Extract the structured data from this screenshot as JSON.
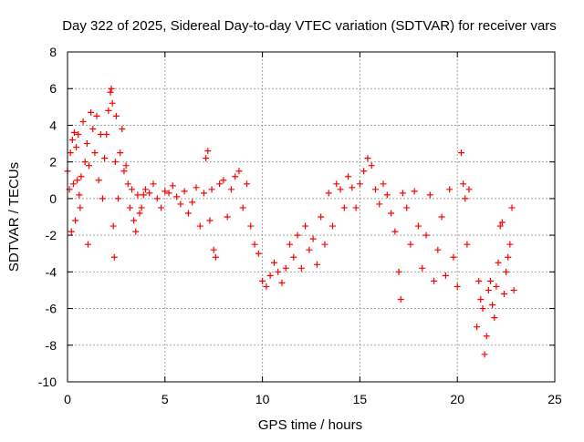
{
  "chart_data": {
    "type": "scatter",
    "title": "Day 322 of 2025, Sidereal Day-to-day VTEC variation (SDTVAR) for receiver vars",
    "xlabel": "GPS time / hours",
    "ylabel": "SDTVAR / TECUs",
    "xlim": [
      0,
      25
    ],
    "ylim": [
      -10,
      8
    ],
    "xticks": [
      0,
      5,
      10,
      15,
      20,
      25
    ],
    "yticks": [
      -10,
      -8,
      -6,
      -4,
      -2,
      0,
      2,
      4,
      6,
      8
    ],
    "grid": true,
    "marker": "+",
    "series_color": "#ff0000",
    "series": [
      {
        "name": "vars",
        "x": [
          0.0,
          0.1,
          0.15,
          0.2,
          0.25,
          0.3,
          0.35,
          0.4,
          0.45,
          0.5,
          0.55,
          0.6,
          0.65,
          0.7,
          0.8,
          0.9,
          1.0,
          1.05,
          1.1,
          1.2,
          1.3,
          1.4,
          1.5,
          1.6,
          1.7,
          1.8,
          1.9,
          2.0,
          2.1,
          2.2,
          2.25,
          2.3,
          2.35,
          2.4,
          2.45,
          2.5,
          2.6,
          2.7,
          2.8,
          2.9,
          3.0,
          3.1,
          3.2,
          3.3,
          3.4,
          3.5,
          3.6,
          3.7,
          3.8,
          3.9,
          4.0,
          4.2,
          4.4,
          4.6,
          4.8,
          5.0,
          5.2,
          5.4,
          5.6,
          5.8,
          6.0,
          6.2,
          6.4,
          6.6,
          6.8,
          7.0,
          7.1,
          7.2,
          7.3,
          7.4,
          7.5,
          7.6,
          7.8,
          8.0,
          8.2,
          8.4,
          8.6,
          8.8,
          9.0,
          9.2,
          9.4,
          9.6,
          9.8,
          10.0,
          10.2,
          10.4,
          10.6,
          10.8,
          11.0,
          11.2,
          11.4,
          11.6,
          11.8,
          12.0,
          12.2,
          12.4,
          12.6,
          12.8,
          13.0,
          13.2,
          13.4,
          13.6,
          13.8,
          14.0,
          14.2,
          14.4,
          14.6,
          14.8,
          15.0,
          15.2,
          15.4,
          15.6,
          15.8,
          16.0,
          16.2,
          16.4,
          16.6,
          16.8,
          17.0,
          17.1,
          17.2,
          17.4,
          17.6,
          17.8,
          18.0,
          18.2,
          18.4,
          18.6,
          18.8,
          19.0,
          19.2,
          19.4,
          19.6,
          19.8,
          20.0,
          20.2,
          20.3,
          20.4,
          20.5,
          20.6,
          21.0,
          21.1,
          21.2,
          21.3,
          21.4,
          21.5,
          21.6,
          21.7,
          21.8,
          21.9,
          22.0,
          22.1,
          22.2,
          22.3,
          22.4,
          22.5,
          22.6,
          22.7,
          22.8,
          22.9
        ],
        "y": [
          1.5,
          0.5,
          2.5,
          -1.8,
          3.2,
          0.8,
          3.6,
          -1.2,
          2.8,
          1.0,
          3.5,
          0.2,
          -0.5,
          1.2,
          4.2,
          2.0,
          3.0,
          -2.5,
          1.8,
          4.7,
          3.8,
          2.5,
          4.5,
          1.0,
          3.5,
          0.0,
          2.2,
          3.5,
          4.8,
          5.8,
          6.0,
          5.2,
          -1.5,
          -3.2,
          2.0,
          4.5,
          0.0,
          2.5,
          3.8,
          1.5,
          1.8,
          0.8,
          -0.5,
          0.5,
          -1.2,
          -1.8,
          0.2,
          -0.8,
          -0.5,
          0.2,
          0.5,
          0.3,
          0.8,
          0.0,
          -0.5,
          0.4,
          0.3,
          0.7,
          0.1,
          -0.3,
          0.4,
          -0.8,
          -0.2,
          0.6,
          -1.5,
          0.3,
          2.2,
          2.6,
          -1.2,
          0.5,
          -2.8,
          -3.2,
          0.8,
          1.0,
          -1.0,
          0.5,
          1.2,
          1.5,
          -0.5,
          0.8,
          -1.5,
          -2.5,
          -3.0,
          -4.5,
          -4.8,
          -4.2,
          -3.5,
          -4.0,
          -4.6,
          -3.8,
          -2.5,
          -3.2,
          -2.0,
          -3.8,
          -1.5,
          -2.8,
          -2.2,
          -3.6,
          -1.0,
          -2.5,
          0.3,
          -1.5,
          0.8,
          0.5,
          -0.5,
          1.2,
          0.6,
          -0.5,
          0.8,
          1.5,
          2.2,
          1.8,
          0.5,
          -0.3,
          0.8,
          0.2,
          -0.8,
          -1.8,
          -4.0,
          -5.5,
          0.3,
          -0.5,
          -2.5,
          0.4,
          -1.5,
          -3.8,
          -2.0,
          0.2,
          -4.5,
          -2.8,
          -1.0,
          -4.2,
          0.5,
          -3.2,
          -4.8,
          2.5,
          0.8,
          0.0,
          -2.5,
          0.5,
          -7.0,
          -4.5,
          -5.5,
          -6.0,
          -8.5,
          -7.5,
          -5.0,
          -4.5,
          -5.8,
          -6.5,
          -4.8,
          -3.5,
          -1.5,
          -1.3,
          -5.2,
          -4.0,
          -3.2,
          -2.5,
          -0.5,
          -5.0
        ]
      }
    ]
  }
}
